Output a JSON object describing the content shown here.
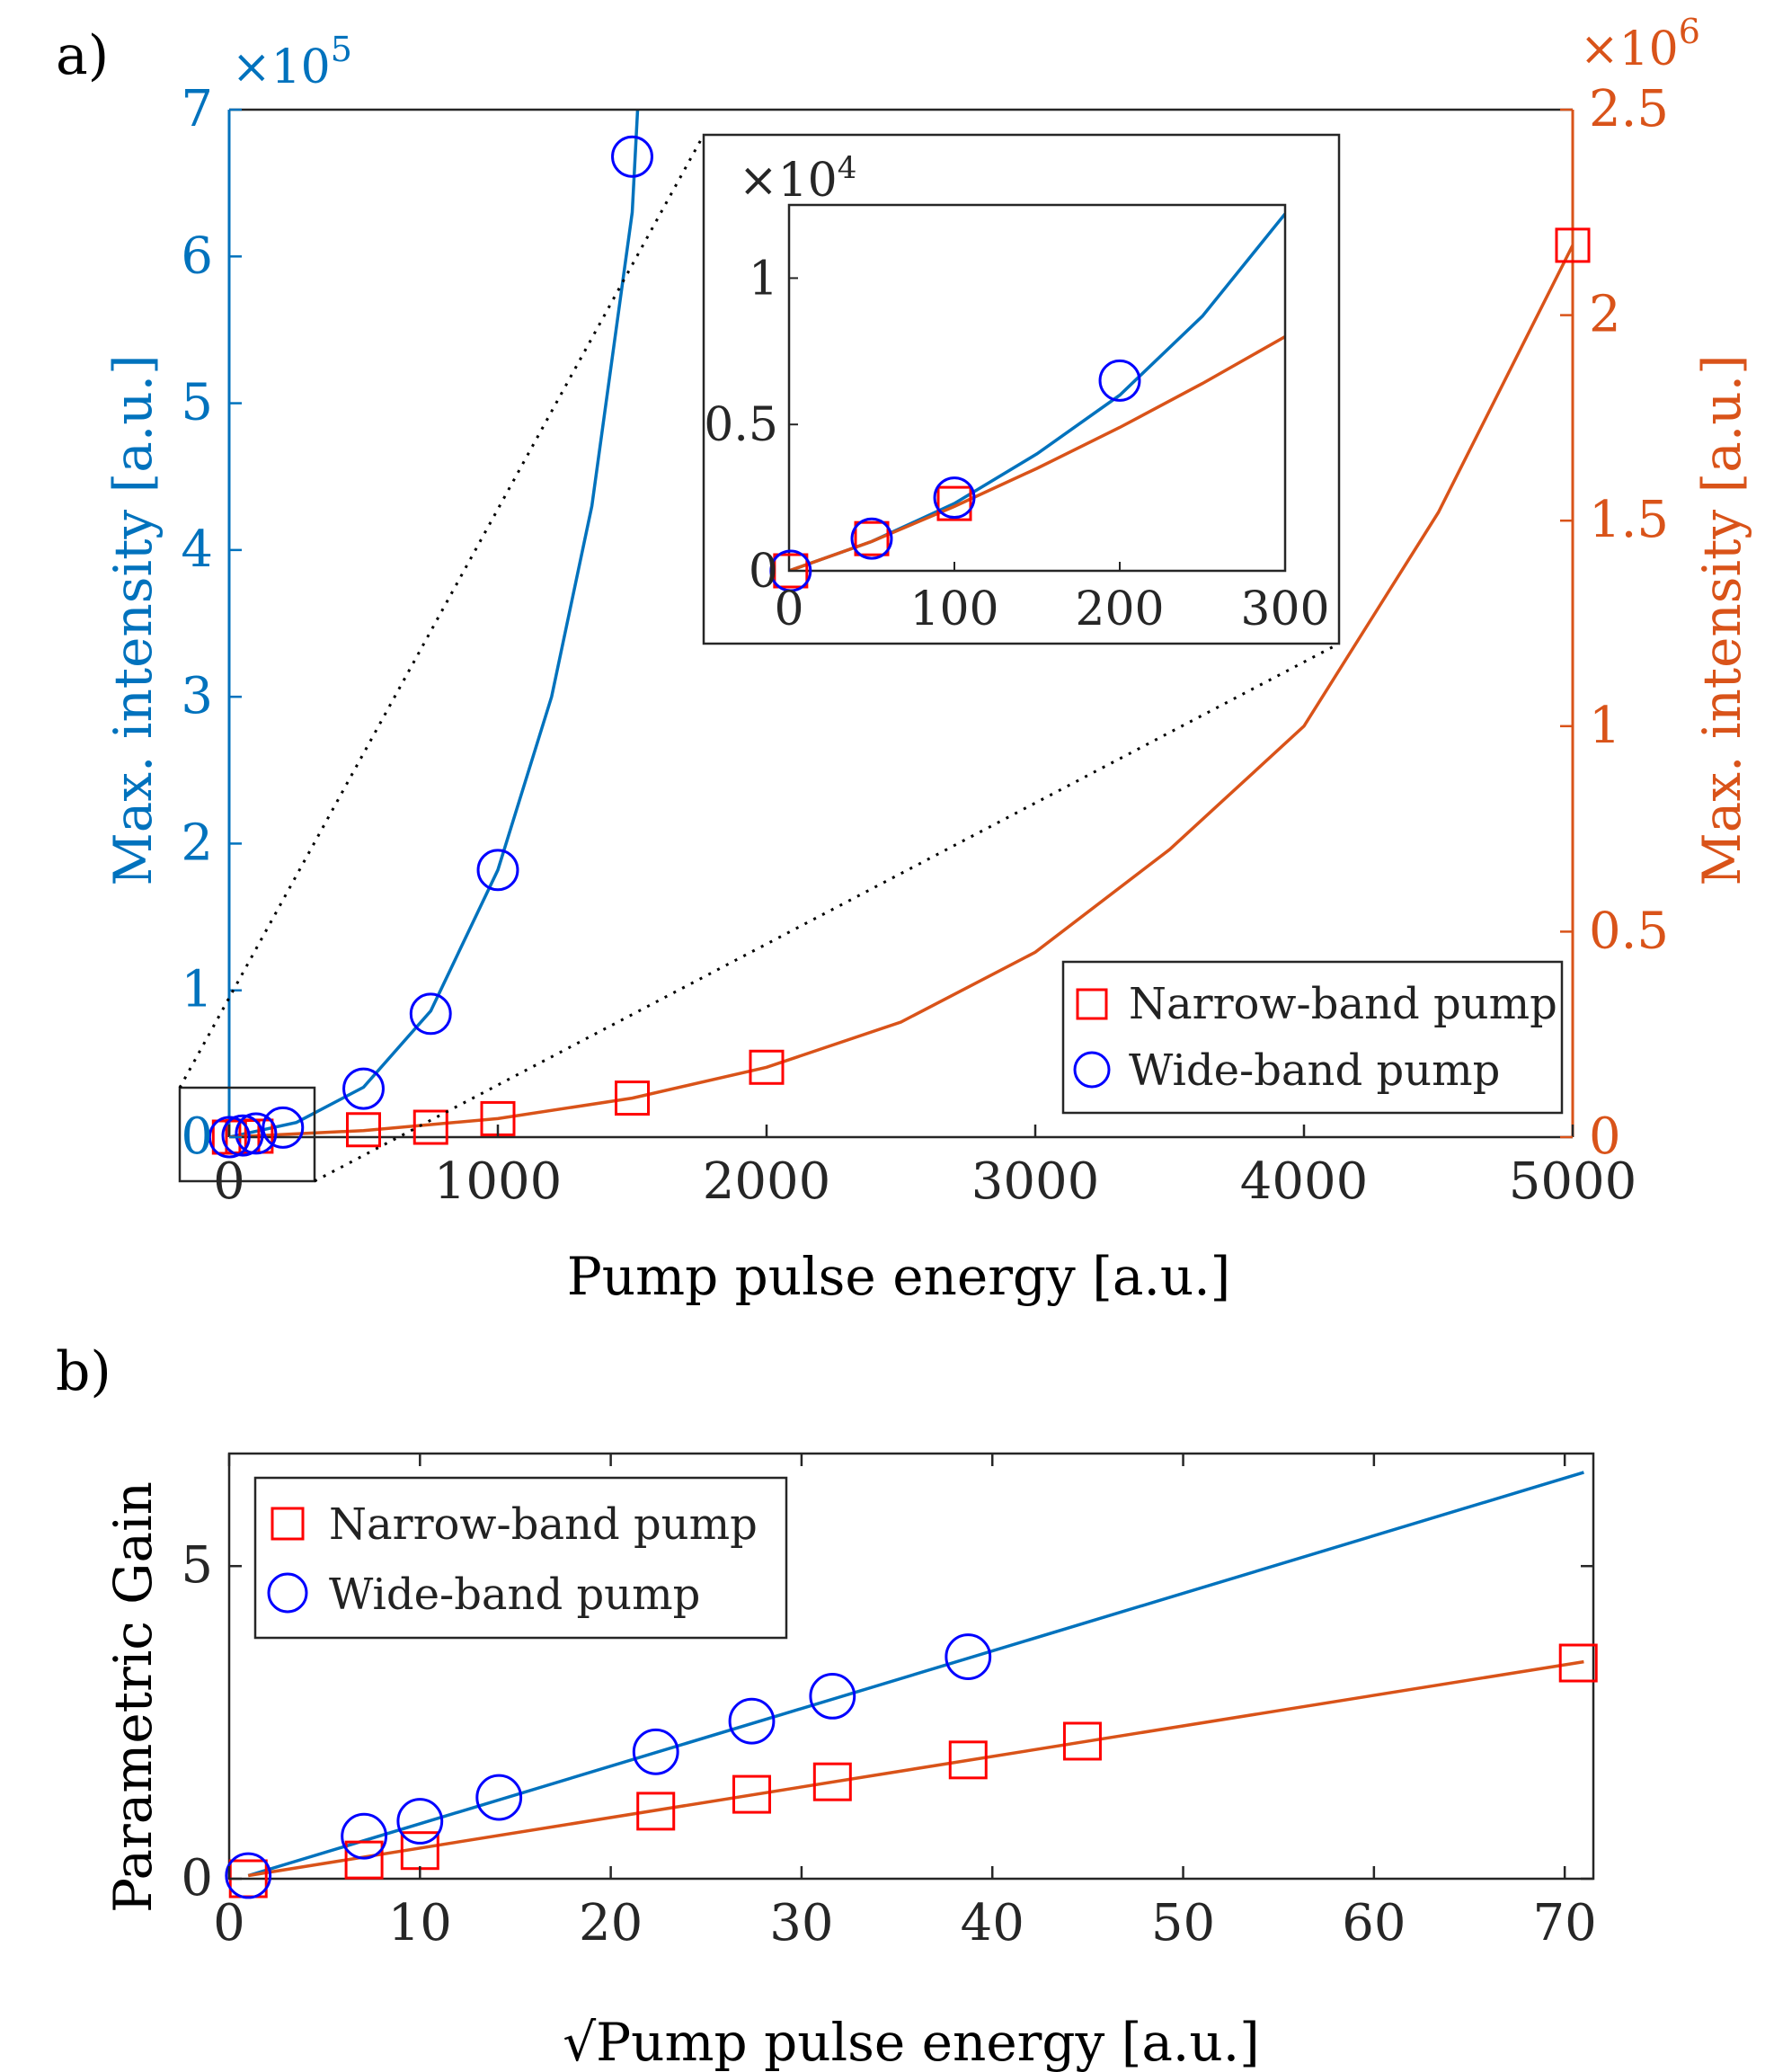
{
  "colors": {
    "blue": "#0072BD",
    "orange": "#D95319",
    "marker_red": "#FF0000",
    "marker_blue": "#0000FF",
    "axis": "#262626"
  },
  "chart_data": [
    {
      "id": "panel-a-main",
      "panel_label": "a)",
      "type": "scatter",
      "title": "",
      "xlabel": "Pump pulse energy [a.u.]",
      "ylabel_left": "Max. intensity [a.u.]",
      "ylabel_right": "Max. intensity [a.u.]",
      "xlim": [
        0,
        5000
      ],
      "ylim_left": [
        0,
        7
      ],
      "ylim_right": [
        0,
        2.5
      ],
      "left_exponent": "5",
      "right_exponent": "6",
      "exponent_base": "×10",
      "xticks": [
        "0",
        "1000",
        "2000",
        "3000",
        "4000",
        "5000"
      ],
      "xtick_values": [
        0,
        1000,
        2000,
        3000,
        4000,
        5000
      ],
      "yticks_left": [
        "0",
        "1",
        "2",
        "3",
        "4",
        "5",
        "6",
        "7"
      ],
      "ytick_values_left": [
        0,
        1,
        2,
        3,
        4,
        5,
        6,
        7
      ],
      "yticks_right": [
        "0",
        "0.5",
        "1",
        "1.5",
        "2",
        "2.5"
      ],
      "ytick_values_right": [
        0,
        0.5,
        1,
        1.5,
        2,
        2.5
      ],
      "series": [
        {
          "name": "Narrow-band pump",
          "marker": "square",
          "axis": "right",
          "x": [
            1,
            50,
            100,
            500,
            750,
            1000,
            1500,
            2000,
            5000
          ],
          "y": [
            0,
            0.0011,
            0.0023,
            0.018,
            0.024,
            0.045,
            0.095,
            0.17,
            2.17
          ]
        },
        {
          "name": "Wide-band pump",
          "marker": "circle",
          "axis": "left",
          "x": [
            1,
            50,
            100,
            200,
            500,
            750,
            1000,
            1500
          ],
          "y": [
            0,
            0.011,
            0.025,
            0.065,
            0.33,
            0.84,
            1.82,
            6.68
          ]
        }
      ],
      "fits": [
        {
          "name": "Wide-band fit",
          "axis": "left",
          "color": "blue",
          "x": [
            0,
            250,
            500,
            750,
            1000,
            1200,
            1350,
            1500,
            1520
          ],
          "y": [
            0,
            0.1,
            0.34,
            0.86,
            1.82,
            3.0,
            4.3,
            6.3,
            7.0
          ]
        },
        {
          "name": "Narrow-band fit",
          "axis": "right",
          "color": "orange",
          "x": [
            0,
            500,
            1000,
            1500,
            2000,
            2500,
            3000,
            3500,
            4000,
            4500,
            5000
          ],
          "y": [
            0,
            0.016,
            0.045,
            0.095,
            0.17,
            0.28,
            0.45,
            0.7,
            1.0,
            1.52,
            2.17
          ]
        }
      ],
      "legend": {
        "placement": "bottom-right",
        "entries": [
          "Narrow-band pump",
          "Wide-band pump"
        ]
      }
    },
    {
      "id": "panel-a-inset",
      "type": "scatter",
      "title": "",
      "xlim": [
        0,
        300
      ],
      "ylim": [
        0,
        1.25
      ],
      "exponent": "4",
      "exponent_base": "×10",
      "xticks": [
        "0",
        "100",
        "200",
        "300"
      ],
      "xtick_values": [
        0,
        100,
        200,
        300
      ],
      "yticks": [
        "0",
        "0.5",
        "1"
      ],
      "ytick_values": [
        0,
        0.5,
        1
      ],
      "series": [
        {
          "name": "Narrow-band pump",
          "marker": "square",
          "x": [
            1,
            50,
            100
          ],
          "y": [
            0,
            0.11,
            0.23
          ]
        },
        {
          "name": "Wide-band pump",
          "marker": "circle",
          "x": [
            1,
            50,
            100,
            200
          ],
          "y": [
            0,
            0.11,
            0.25,
            0.65
          ]
        }
      ],
      "fits": [
        {
          "name": "Wide-band fit",
          "color": "blue",
          "x": [
            0,
            50,
            100,
            150,
            200,
            250,
            300
          ],
          "y": [
            0,
            0.1,
            0.23,
            0.4,
            0.6,
            0.87,
            1.22
          ]
        },
        {
          "name": "Narrow-band fit",
          "color": "orange",
          "x": [
            0,
            50,
            100,
            150,
            200,
            250,
            300
          ],
          "y": [
            0,
            0.1,
            0.22,
            0.35,
            0.49,
            0.64,
            0.8
          ]
        }
      ]
    },
    {
      "id": "panel-b",
      "panel_label": "b)",
      "type": "scatter",
      "title": "",
      "xlabel": "√Pump pulse energy [a.u.]",
      "ylabel": "Parametric Gain",
      "xlim": [
        0,
        71.5
      ],
      "ylim": [
        0,
        6.8
      ],
      "xticks": [
        "0",
        "10",
        "20",
        "30",
        "40",
        "50",
        "60",
        "70"
      ],
      "xtick_values": [
        0,
        10,
        20,
        30,
        40,
        50,
        60,
        70
      ],
      "yticks": [
        "0",
        "5"
      ],
      "ytick_values": [
        0,
        5
      ],
      "series": [
        {
          "name": "Narrow-band pump",
          "marker": "square",
          "x": [
            1,
            7.07,
            10,
            22.36,
            27.39,
            31.62,
            38.73,
            44.72,
            70.71
          ],
          "y": [
            0,
            0.3,
            0.45,
            1.08,
            1.35,
            1.55,
            1.9,
            2.2,
            3.45
          ]
        },
        {
          "name": "Wide-band pump",
          "marker": "circle",
          "x": [
            1,
            7.07,
            10,
            14.14,
            22.36,
            27.39,
            31.62,
            38.73
          ],
          "y": [
            0.05,
            0.68,
            0.92,
            1.3,
            2.03,
            2.52,
            2.92,
            3.55
          ]
        }
      ],
      "fits": [
        {
          "name": "Wide-band fit",
          "color": "blue",
          "x": [
            1,
            71
          ],
          "y": [
            0.05,
            6.5
          ]
        },
        {
          "name": "Narrow-band fit",
          "color": "orange",
          "x": [
            1,
            71
          ],
          "y": [
            0.05,
            3.47
          ]
        }
      ],
      "legend": {
        "placement": "top-left",
        "entries": [
          "Narrow-band pump",
          "Wide-band pump"
        ]
      }
    }
  ]
}
